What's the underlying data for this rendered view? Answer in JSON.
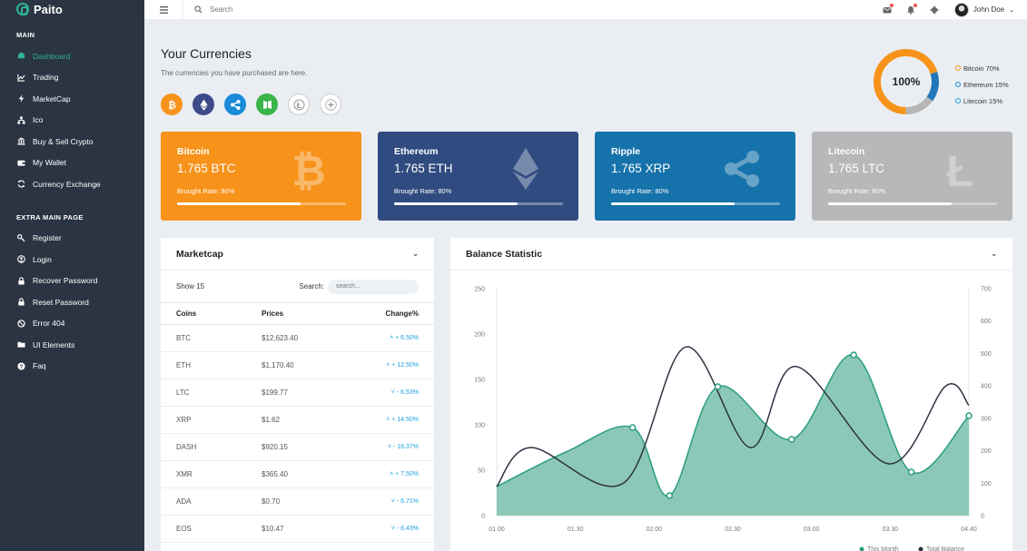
{
  "brand": {
    "name": "Paito"
  },
  "sidebar": {
    "main_title": "MAIN",
    "main_items": [
      {
        "label": "Dashboard",
        "icon": "dashboard-icon",
        "active": true
      },
      {
        "label": "Trading",
        "icon": "chart-line-icon"
      },
      {
        "label": "MarketCap",
        "icon": "bolt-icon"
      },
      {
        "label": "Ico",
        "icon": "sitemap-icon"
      },
      {
        "label": "Buy & Sell Crypto",
        "icon": "bank-icon"
      },
      {
        "label": "My Wallet",
        "icon": "wallet-icon"
      },
      {
        "label": "Currency Exchange",
        "icon": "sync-icon"
      }
    ],
    "extra_title": "EXTRA MAIN PAGE",
    "extra_items": [
      {
        "label": "Register",
        "icon": "key-icon"
      },
      {
        "label": "Login",
        "icon": "user-circle-icon"
      },
      {
        "label": "Recover Password",
        "icon": "lock-icon"
      },
      {
        "label": "Reset Password",
        "icon": "lock-icon"
      },
      {
        "label": "Error 404",
        "icon": "ban-icon"
      },
      {
        "label": "UI Elements",
        "icon": "folder-icon"
      },
      {
        "label": "Faq",
        "icon": "question-icon"
      }
    ]
  },
  "topbar": {
    "search_placeholder": "Search",
    "user_name": "John Doe"
  },
  "currencies": {
    "title": "Your Currencies",
    "subtitle": "The currencies you have purchased are here.",
    "coins": [
      {
        "name": "bitcoin-coin",
        "color": "#f7931a"
      },
      {
        "name": "ethereum-coin",
        "color": "#3c4a8a"
      },
      {
        "name": "ripple-coin",
        "color": "#1a8bd8"
      },
      {
        "name": "neo-coin",
        "color": "#3ab54a"
      },
      {
        "name": "litecoin-coin",
        "color": "#bbbbbb"
      },
      {
        "name": "add-coin",
        "color": "#bbbbbb"
      }
    ],
    "donut_label": "100%",
    "legend": [
      {
        "label": "Bitcoin 70%",
        "color": "#f7931a",
        "value": 70
      },
      {
        "label": "Ethereum 15%",
        "color": "#1a8bd8",
        "value": 15
      },
      {
        "label": "Litecoin 15%",
        "color": "#1ba1e2",
        "value": 15
      }
    ]
  },
  "cards": [
    {
      "name": "Bitcoin",
      "amount": "1.765 BTC",
      "rate": "Brought Rate: 80%",
      "progress": 0.73,
      "bg": "#f7931a",
      "icon": "bitcoin-icon"
    },
    {
      "name": "Ethereum",
      "amount": "1.765 ETH",
      "rate": "Brought Rate: 80%",
      "progress": 0.73,
      "bg": "#2f4b80",
      "icon": "ethereum-icon"
    },
    {
      "name": "Ripple",
      "amount": "1.765 XRP",
      "rate": "Brought Rate: 80%",
      "progress": 0.73,
      "bg": "#1572aa",
      "icon": "ripple-icon"
    },
    {
      "name": "Litecoin",
      "amount": "1.765 LTC",
      "rate": "Brought Rate: 80%",
      "progress": 0.73,
      "bg": "#b8b8b8",
      "icon": "litecoin-icon"
    }
  ],
  "marketcap": {
    "title": "Marketcap",
    "show_label": "Show 15",
    "search_label": "Search:",
    "search_placeholder": "search...",
    "columns": [
      "Coins",
      "Prices",
      "Change%"
    ],
    "rows": [
      {
        "coin": "BTC",
        "price": "$12,623.40",
        "change": "+ 6.50%",
        "dir": "up"
      },
      {
        "coin": "ETH",
        "price": "$1,170.40",
        "change": "+ 12.50%",
        "dir": "up"
      },
      {
        "coin": "LTC",
        "price": "$199.77",
        "change": "- 6.53%",
        "dir": "down"
      },
      {
        "coin": "XRP",
        "price": "$1.62",
        "change": "+ 14.50%",
        "dir": "up"
      },
      {
        "coin": "DASH",
        "price": "$920.15",
        "change": "- 16.37%",
        "dir": "down"
      },
      {
        "coin": "XMR",
        "price": "$365.40",
        "change": "+ 7.50%",
        "dir": "up"
      },
      {
        "coin": "ADA",
        "price": "$0.70",
        "change": "- 6.71%",
        "dir": "down"
      },
      {
        "coin": "EOS",
        "price": "$10.47",
        "change": "- 6.43%",
        "dir": "down"
      }
    ]
  },
  "balance": {
    "title": "Balance Statistic",
    "legend": [
      "This Month",
      "Total Balance"
    ]
  },
  "chart_data": {
    "type": "area",
    "categories": [
      "01.00",
      "01.30",
      "02.00",
      "02.30",
      "03.00",
      "03.30",
      "04.40"
    ],
    "ylim_left": [
      0,
      250
    ],
    "yticks_left": [
      0,
      50,
      100,
      150,
      200,
      250
    ],
    "ylim_right": [
      0,
      700
    ],
    "yticks_right": [
      0,
      100,
      200,
      300,
      400,
      500,
      600,
      700
    ],
    "grid": false,
    "legend": "bottom-right",
    "series": [
      {
        "name": "This Month",
        "axis": "left",
        "color": "#2a9d80",
        "x": [
          0,
          0.3,
          0.59,
          0.75,
          0.96,
          1.28,
          1.55,
          1.8,
          2.05
        ],
        "values": [
          32,
          70,
          97,
          22,
          142,
          84,
          177,
          48,
          110
        ],
        "markers": [
          false,
          false,
          true,
          true,
          true,
          true,
          true,
          true,
          true
        ]
      },
      {
        "name": "Total Balance",
        "axis": "right",
        "color": "#2b3442",
        "x": [
          0,
          0.15,
          0.55,
          0.82,
          1.1,
          1.3,
          1.7,
          1.95,
          2.05
        ],
        "values": [
          90,
          210,
          100,
          520,
          210,
          460,
          160,
          400,
          340
        ]
      }
    ]
  }
}
